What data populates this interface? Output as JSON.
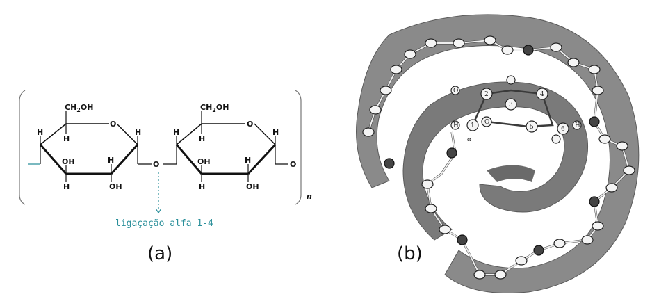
{
  "figure": {
    "panel_a_label": "(a)",
    "panel_b_label": "(b)"
  },
  "structure": {
    "ring1_ch2oh": "CH",
    "ring2_ch2oh": "CH",
    "sub2": "2",
    "oh_suffix": "OH",
    "ring_oxygen": "O",
    "bridge_oxygen": "O",
    "end_oxygen": "O",
    "hydrogen": "H",
    "hydroxyl": "OH",
    "repeat_n": "n",
    "linkage_caption": "ligaçação alfa 1-4",
    "alpha_symbol": "α"
  },
  "helix": {
    "labels": [
      "1",
      "2",
      "3",
      "4",
      "5",
      "6",
      "H",
      "O"
    ]
  },
  "colors": {
    "caption": "#2a8f9a",
    "ribbon": "#8a8a8a",
    "ribbon_dark": "#6a6a6a",
    "bond_dark": "#3a3a3a"
  }
}
